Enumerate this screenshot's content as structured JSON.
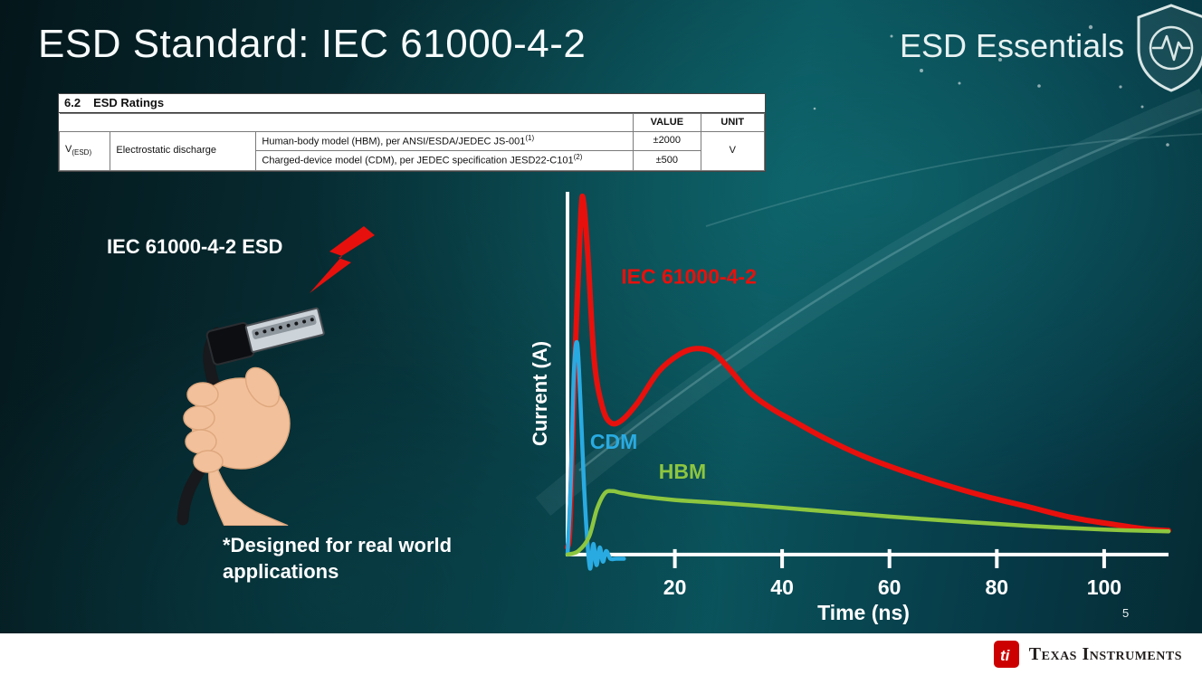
{
  "slide": {
    "title": "ESD Standard: IEC 61000-4-2",
    "brand": "ESD Essentials",
    "iec_label": "IEC 61000-4-2 ESD",
    "note": "*Designed for real world\napplications",
    "page_number": "5"
  },
  "footer": {
    "company": "Texas Instruments",
    "logo_monogram": "ti"
  },
  "ratings_table": {
    "section_number": "6.2",
    "section_title": "ESD Ratings",
    "columns": {
      "value": "VALUE",
      "unit": "UNIT"
    },
    "symbol": "V",
    "symbol_subscript": "(ESD)",
    "parameter": "Electrostatic discharge",
    "rows": [
      {
        "description": "Human-body model (HBM), per ANSI/ESDA/JEDEC JS-001",
        "footnote": "(1)",
        "value": "±2000"
      },
      {
        "description": "Charged-device model (CDM), per JEDEC specification JESD22-C101",
        "footnote": "(2)",
        "value": "±500"
      }
    ],
    "unit": "V"
  },
  "chart_data": {
    "type": "line",
    "title": "",
    "xlabel": "Time (ns)",
    "ylabel": "Current (A)",
    "xlim": [
      0,
      112
    ],
    "ylim": [
      -0.08,
      1.02
    ],
    "x_ticks": [
      20,
      40,
      60,
      80,
      100
    ],
    "grid": false,
    "legend_position": "inline-labels",
    "series": [
      {
        "name": "IEC 61000-4-2",
        "color": "#e8100c",
        "stroke_width": 6,
        "x": [
          0,
          0.5,
          1.5,
          2.5,
          3,
          3.8,
          5,
          6.5,
          8,
          10,
          13,
          17,
          21,
          24,
          27,
          30,
          34,
          38,
          42,
          48,
          55,
          62,
          70,
          78,
          86,
          94,
          102,
          108,
          112
        ],
        "y": [
          0.02,
          0.1,
          0.6,
          0.97,
          1.0,
          0.85,
          0.55,
          0.42,
          0.375,
          0.38,
          0.43,
          0.52,
          0.57,
          0.585,
          0.575,
          0.53,
          0.46,
          0.415,
          0.38,
          0.33,
          0.28,
          0.24,
          0.2,
          0.165,
          0.135,
          0.105,
          0.085,
          0.072,
          0.068
        ]
      },
      {
        "name": "CDM",
        "color": "#29abe2",
        "stroke_width": 4.5,
        "x": [
          0,
          0.6,
          1.2,
          1.8,
          2.4,
          3.0,
          3.6,
          4.2,
          4.8,
          5.4,
          6.0,
          6.6,
          7.2,
          8,
          9,
          10.5
        ],
        "y": [
          0,
          0.2,
          0.52,
          0.6,
          0.44,
          0.22,
          0.06,
          -0.04,
          0.03,
          -0.03,
          0.02,
          -0.02,
          0.01,
          -0.012,
          -0.012,
          -0.012
        ]
      },
      {
        "name": "HBM",
        "color": "#8dc63f",
        "stroke_width": 4.5,
        "x": [
          0,
          2,
          4,
          5.5,
          7,
          8.5,
          10,
          14,
          20,
          28,
          36,
          44,
          52,
          60,
          70,
          80,
          90,
          100,
          106,
          112
        ],
        "y": [
          0,
          0.01,
          0.05,
          0.13,
          0.175,
          0.18,
          0.175,
          0.165,
          0.155,
          0.147,
          0.138,
          0.128,
          0.118,
          0.108,
          0.097,
          0.087,
          0.078,
          0.071,
          0.068,
          0.066
        ]
      }
    ],
    "labels": [
      {
        "text": "IEC 61000-4-2",
        "x": 10,
        "y": 0.77,
        "color": "#e8100c"
      },
      {
        "text": "CDM",
        "x": 4.2,
        "y": 0.3,
        "color": "#29abe2"
      },
      {
        "text": "HBM",
        "x": 17,
        "y": 0.215,
        "color": "#8dc63f"
      }
    ]
  }
}
